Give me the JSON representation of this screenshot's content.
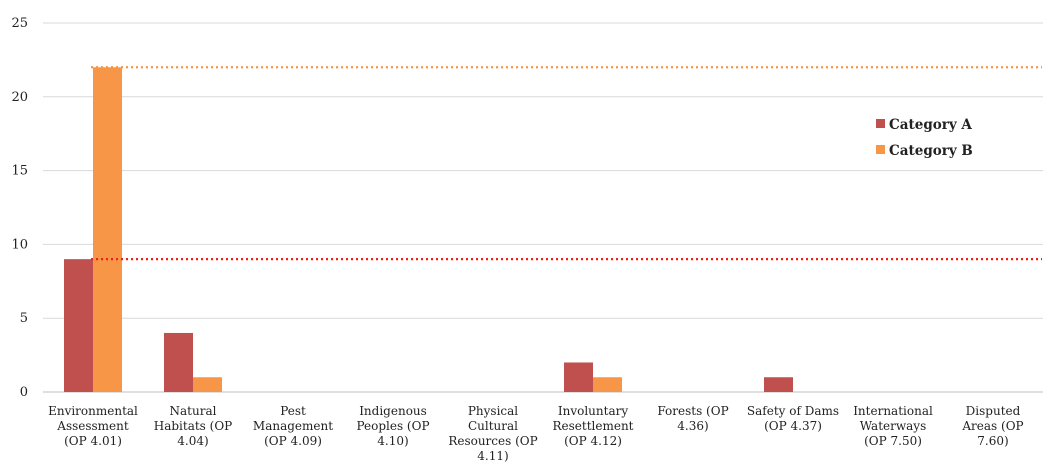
{
  "chart_data": {
    "type": "bar",
    "categories": [
      [
        "Environmental",
        "Assessment",
        "(OP 4.01)"
      ],
      [
        "Natural",
        "Habitats (OP",
        "4.04)"
      ],
      [
        "Pest",
        "Management",
        "(OP 4.09)"
      ],
      [
        "Indigenous",
        "Peoples (OP",
        "4.10)"
      ],
      [
        "Physical",
        "Cultural",
        "Resources (OP",
        "4.11)"
      ],
      [
        "Involuntary",
        "Resettlement",
        "(OP 4.12)"
      ],
      [
        "Forests (OP",
        "4.36)"
      ],
      [
        "Safety of Dams",
        "(OP 4.37)"
      ],
      [
        "International",
        "Waterways",
        "(OP 7.50)"
      ],
      [
        "Disputed",
        "Areas (OP",
        "7.60)"
      ]
    ],
    "series": [
      {
        "name": "Category A",
        "color": "#c0504d",
        "values": [
          9,
          4,
          0,
          0,
          0,
          2,
          0,
          1,
          0,
          0
        ]
      },
      {
        "name": "Category B",
        "color": "#f79646",
        "values": [
          22,
          1,
          0,
          0,
          0,
          1,
          0,
          0,
          0,
          0
        ]
      }
    ],
    "reference_lines": [
      {
        "value": 22,
        "color": "#f79646",
        "style": "dotted"
      },
      {
        "value": 9,
        "color": "#e8211f",
        "style": "dotted"
      }
    ],
    "ylim": [
      0,
      25
    ],
    "yticks": [
      0,
      5,
      10,
      15,
      20,
      25
    ],
    "grid": true,
    "legend_position": "right",
    "title": "",
    "xlabel": "",
    "ylabel": ""
  }
}
